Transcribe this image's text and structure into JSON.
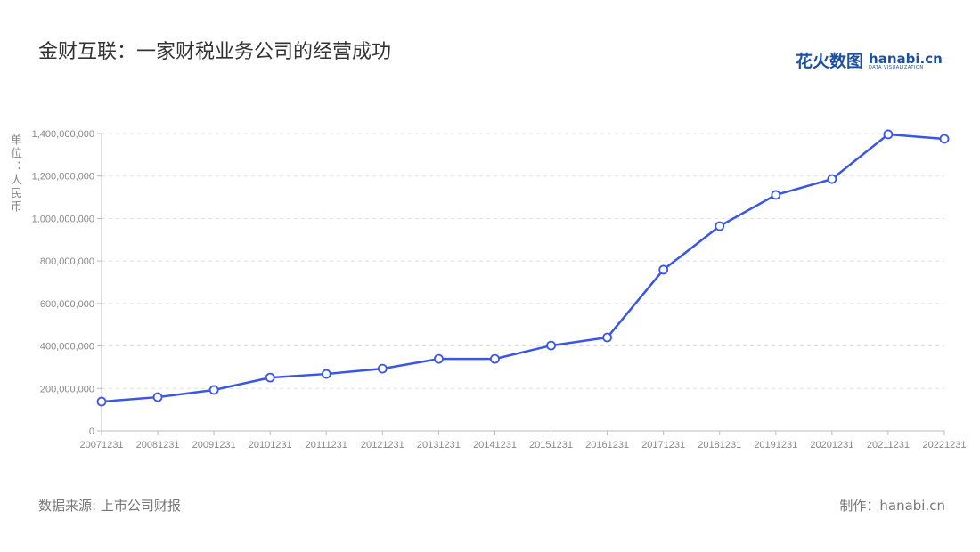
{
  "header": {
    "title": "金财互联：一家财税业务公司的经营成功"
  },
  "logo": {
    "cn": "花火数图",
    "en": "hanabi.cn",
    "tagline": "DATA VISUALIZATION"
  },
  "footer": {
    "source": "数据来源: 上市公司财报",
    "credit": "制作：hanabi.cn"
  },
  "chart_data": {
    "type": "line",
    "title": "金财互联：一家财税业务公司的经营成功",
    "ylabel": "单位：人民币",
    "xlabel": "",
    "ylim": [
      0,
      1400000000
    ],
    "yticks": [
      "0",
      "200,000,000",
      "400,000,000",
      "600,000,000",
      "800,000,000",
      "1,000,000,000",
      "1,200,000,000",
      "1,400,000,000"
    ],
    "grid": true,
    "categories": [
      "20071231",
      "20081231",
      "20091231",
      "20101231",
      "20111231",
      "20121231",
      "20131231",
      "20141231",
      "20151231",
      "20161231",
      "20171231",
      "20181231",
      "20191231",
      "20201231",
      "20211231",
      "20221231"
    ],
    "values": [
      138000000,
      159000000,
      193000000,
      251000000,
      268000000,
      293000000,
      339000000,
      339000000,
      402000000,
      440000000,
      759000000,
      964000000,
      1111000000,
      1186000000,
      1396000000,
      1375000000
    ],
    "color": "#3a56e8"
  }
}
